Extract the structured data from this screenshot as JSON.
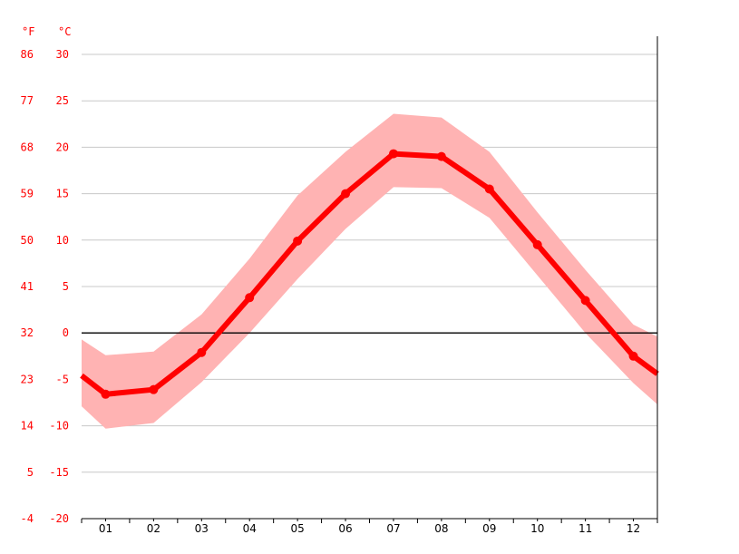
{
  "chart_data": {
    "type": "line",
    "title": "",
    "xlabel": "",
    "ylabel": "",
    "unit_labels": {
      "fahrenheit": "°F",
      "celsius": "°C"
    },
    "categories": [
      "01",
      "02",
      "03",
      "04",
      "05",
      "06",
      "07",
      "08",
      "09",
      "10",
      "11",
      "12"
    ],
    "y_ticks_c": [
      "30",
      "25",
      "20",
      "15",
      "10",
      "5",
      "0",
      "-5",
      "-10",
      "-15",
      "-20"
    ],
    "y_ticks_f": [
      "86",
      "77",
      "68",
      "59",
      "50",
      "41",
      "32",
      "23",
      "14",
      "5",
      "-4"
    ],
    "ylim": [
      -20,
      30
    ],
    "grid": true,
    "zero_line": true,
    "series": [
      {
        "values": [
          -6.6,
          -6.1,
          -2.1,
          3.8,
          9.9,
          15.0,
          19.3,
          19.0,
          15.5,
          9.5,
          3.5,
          -2.5
        ],
        "color": "#ff0000"
      }
    ],
    "band": {
      "upper": [
        -2.4,
        -2.0,
        2.0,
        8.0,
        14.8,
        19.5,
        23.6,
        23.2,
        19.5,
        13.0,
        6.8,
        0.9
      ],
      "lower": [
        -10.3,
        -9.7,
        -5.3,
        0.0,
        5.8,
        11.2,
        15.7,
        15.6,
        12.4,
        6.2,
        0.0,
        -5.4
      ],
      "color": "#ffb3b3"
    },
    "edge_values": {
      "left": {
        "value": -4.6,
        "upper": -0.7,
        "lower": -7.9
      },
      "right": {
        "value": -4.4,
        "upper": -0.4,
        "lower": -7.7
      }
    },
    "colors": {
      "axis_text": "#ff0000",
      "grid": "#c8c8c8",
      "zero_line": "#000000",
      "axis": "#000000"
    }
  }
}
